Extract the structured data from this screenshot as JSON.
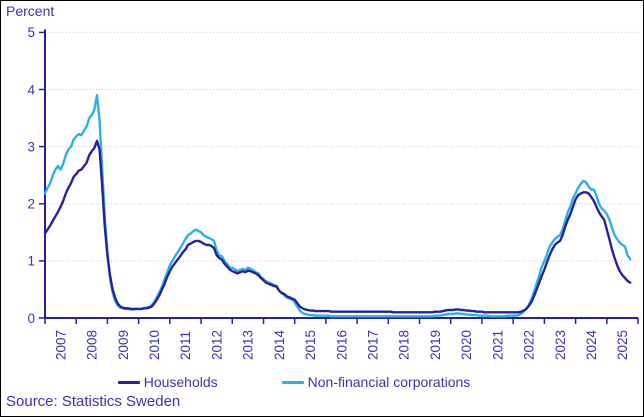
{
  "theme": {
    "text_color": "#3a35b4",
    "axis_color": "#2621a1",
    "grid_color": "#c6c6e6",
    "background": "#ffffff",
    "border_color": "#000000"
  },
  "header": {
    "unit_label": "Percent"
  },
  "footer": {
    "source": "Source: Statistics Sweden"
  },
  "legend": {
    "items": [
      {
        "label": "Households",
        "color": "#2621a1"
      },
      {
        "label": "Non-financial corporations",
        "color": "#2bb1e7"
      }
    ]
  },
  "chart_data": {
    "type": "line",
    "title": "Percent",
    "ylabel": "Percent",
    "xlabel": "",
    "ylim": [
      0,
      5
    ],
    "yticks": [
      0,
      1,
      2,
      3,
      4,
      5
    ],
    "grid": "horizontal-dotted",
    "legend_position": "bottom",
    "frequency": "monthly",
    "x_start_year": 2007,
    "x_axis_span_years": 19,
    "x_tick_labels": [
      "2007",
      "2008",
      "2009",
      "2010",
      "2011",
      "2012",
      "2013",
      "2014",
      "2015",
      "2016",
      "2017",
      "2018",
      "2019",
      "2020",
      "2021",
      "2022",
      "2023",
      "2024",
      "2025"
    ],
    "source": "Source: Statistics Sweden",
    "series": [
      {
        "name": "Households",
        "color": "#2621a1",
        "values": [
          1.48,
          1.55,
          1.62,
          1.7,
          1.78,
          1.86,
          1.95,
          2.05,
          2.18,
          2.28,
          2.36,
          2.47,
          2.52,
          2.58,
          2.6,
          2.66,
          2.72,
          2.85,
          2.92,
          2.98,
          3.1,
          2.95,
          2.3,
          1.6,
          1.1,
          0.75,
          0.5,
          0.35,
          0.25,
          0.2,
          0.18,
          0.17,
          0.17,
          0.16,
          0.16,
          0.16,
          0.16,
          0.16,
          0.17,
          0.17,
          0.18,
          0.2,
          0.25,
          0.32,
          0.4,
          0.5,
          0.6,
          0.72,
          0.82,
          0.9,
          0.96,
          1.02,
          1.08,
          1.15,
          1.2,
          1.28,
          1.3,
          1.33,
          1.35,
          1.35,
          1.33,
          1.3,
          1.28,
          1.28,
          1.26,
          1.22,
          1.1,
          1.05,
          1.02,
          0.95,
          0.9,
          0.85,
          0.82,
          0.8,
          0.78,
          0.8,
          0.82,
          0.8,
          0.83,
          0.82,
          0.8,
          0.78,
          0.75,
          0.7,
          0.66,
          0.62,
          0.6,
          0.58,
          0.56,
          0.55,
          0.48,
          0.44,
          0.42,
          0.38,
          0.36,
          0.34,
          0.32,
          0.26,
          0.2,
          0.17,
          0.15,
          0.14,
          0.13,
          0.13,
          0.12,
          0.12,
          0.12,
          0.12,
          0.12,
          0.12,
          0.11,
          0.11,
          0.11,
          0.11,
          0.11,
          0.11,
          0.11,
          0.11,
          0.11,
          0.11,
          0.11,
          0.11,
          0.11,
          0.11,
          0.11,
          0.11,
          0.11,
          0.11,
          0.11,
          0.11,
          0.11,
          0.11,
          0.11,
          0.11,
          0.1,
          0.1,
          0.1,
          0.1,
          0.1,
          0.1,
          0.1,
          0.1,
          0.1,
          0.1,
          0.1,
          0.1,
          0.1,
          0.1,
          0.1,
          0.1,
          0.11,
          0.11,
          0.11,
          0.12,
          0.13,
          0.14,
          0.14,
          0.14,
          0.15,
          0.15,
          0.14,
          0.14,
          0.13,
          0.13,
          0.12,
          0.12,
          0.11,
          0.11,
          0.11,
          0.1,
          0.1,
          0.1,
          0.1,
          0.1,
          0.1,
          0.1,
          0.1,
          0.1,
          0.1,
          0.1,
          0.1,
          0.1,
          0.1,
          0.11,
          0.13,
          0.16,
          0.21,
          0.28,
          0.38,
          0.5,
          0.62,
          0.74,
          0.85,
          0.98,
          1.1,
          1.2,
          1.28,
          1.32,
          1.35,
          1.45,
          1.6,
          1.72,
          1.82,
          1.95,
          2.08,
          2.15,
          2.18,
          2.2,
          2.2,
          2.18,
          2.12,
          2.05,
          1.95,
          1.85,
          1.78,
          1.72,
          1.55,
          1.38,
          1.2,
          1.05,
          0.92,
          0.82,
          0.75,
          0.7,
          0.65,
          0.62
        ]
      },
      {
        "name": "Non-financial corporations",
        "color": "#2bb1e7",
        "values": [
          2.18,
          2.28,
          2.36,
          2.5,
          2.6,
          2.66,
          2.6,
          2.7,
          2.85,
          2.95,
          3.0,
          3.12,
          3.18,
          3.22,
          3.2,
          3.28,
          3.35,
          3.5,
          3.55,
          3.65,
          3.9,
          3.45,
          2.6,
          1.75,
          1.15,
          0.7,
          0.45,
          0.3,
          0.22,
          0.18,
          0.17,
          0.16,
          0.16,
          0.15,
          0.15,
          0.16,
          0.16,
          0.16,
          0.17,
          0.18,
          0.19,
          0.22,
          0.28,
          0.36,
          0.45,
          0.55,
          0.68,
          0.8,
          0.92,
          1.0,
          1.08,
          1.15,
          1.22,
          1.3,
          1.38,
          1.45,
          1.48,
          1.52,
          1.55,
          1.52,
          1.5,
          1.45,
          1.42,
          1.4,
          1.38,
          1.35,
          1.18,
          1.1,
          1.08,
          1.0,
          0.95,
          0.88,
          0.88,
          0.85,
          0.82,
          0.84,
          0.86,
          0.84,
          0.88,
          0.86,
          0.84,
          0.8,
          0.78,
          0.72,
          0.68,
          0.64,
          0.62,
          0.6,
          0.58,
          0.56,
          0.48,
          0.43,
          0.4,
          0.36,
          0.34,
          0.32,
          0.28,
          0.2,
          0.13,
          0.09,
          0.07,
          0.06,
          0.05,
          0.05,
          0.04,
          0.04,
          0.04,
          0.04,
          0.04,
          0.04,
          0.03,
          0.03,
          0.03,
          0.03,
          0.03,
          0.03,
          0.03,
          0.03,
          0.03,
          0.03,
          0.03,
          0.03,
          0.03,
          0.03,
          0.03,
          0.03,
          0.03,
          0.03,
          0.03,
          0.03,
          0.03,
          0.03,
          0.03,
          0.03,
          0.03,
          0.03,
          0.03,
          0.03,
          0.03,
          0.03,
          0.03,
          0.03,
          0.03,
          0.03,
          0.03,
          0.03,
          0.03,
          0.03,
          0.03,
          0.03,
          0.04,
          0.04,
          0.04,
          0.05,
          0.06,
          0.07,
          0.07,
          0.07,
          0.08,
          0.08,
          0.07,
          0.07,
          0.06,
          0.06,
          0.05,
          0.05,
          0.05,
          0.04,
          0.04,
          0.04,
          0.04,
          0.03,
          0.03,
          0.03,
          0.03,
          0.03,
          0.03,
          0.03,
          0.04,
          0.04,
          0.04,
          0.04,
          0.05,
          0.07,
          0.11,
          0.16,
          0.23,
          0.33,
          0.46,
          0.6,
          0.74,
          0.9,
          1.0,
          1.12,
          1.25,
          1.32,
          1.38,
          1.42,
          1.45,
          1.55,
          1.7,
          1.85,
          1.95,
          2.1,
          2.18,
          2.28,
          2.35,
          2.4,
          2.38,
          2.3,
          2.25,
          2.25,
          2.15,
          2.0,
          1.92,
          1.88,
          1.82,
          1.72,
          1.58,
          1.45,
          1.38,
          1.32,
          1.28,
          1.25,
          1.1,
          1.03
        ]
      }
    ]
  }
}
